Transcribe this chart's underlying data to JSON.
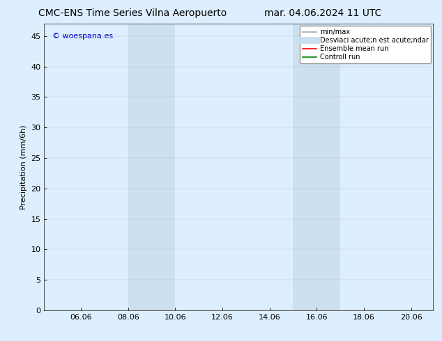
{
  "title_left": "CMC-ENS Time Series Vilna Aeropuerto",
  "title_right": "mar. 04.06.2024 11 UTC",
  "ylabel": "Precipitation (mm/6h)",
  "watermark": "© woespana.es",
  "watermark_color": "#0000cc",
  "background_color": "#ffffff",
  "plot_bg_color": "#ddeeff",
  "x_min": 4.5,
  "x_max": 21.0,
  "y_min": 0,
  "y_max": 47,
  "x_ticks": [
    6.06,
    8.06,
    10.06,
    12.06,
    14.06,
    16.06,
    18.06,
    20.06
  ],
  "x_tick_labels": [
    "06.06",
    "08.06",
    "10.06",
    "12.06",
    "14.06",
    "16.06",
    "18.06",
    "20.06"
  ],
  "y_ticks": [
    0,
    5,
    10,
    15,
    20,
    25,
    30,
    35,
    40,
    45
  ],
  "shaded_regions": [
    {
      "x_start": 8.06,
      "x_end": 10.06,
      "color": "#cce0f0",
      "alpha": 1.0
    },
    {
      "x_start": 15.06,
      "x_end": 17.06,
      "color": "#cce0f0",
      "alpha": 1.0
    }
  ],
  "legend_entries": [
    {
      "label": "min/max",
      "color": "#aaaaaa",
      "lw": 1.2,
      "style": "solid"
    },
    {
      "label": "Desviaci acute;n est acute;ndar",
      "color": "#c8dff0",
      "lw": 7,
      "style": "solid"
    },
    {
      "label": "Ensemble mean run",
      "color": "#ff0000",
      "lw": 1.2,
      "style": "solid"
    },
    {
      "label": "Controll run",
      "color": "#008000",
      "lw": 1.2,
      "style": "solid"
    }
  ],
  "font_size_title": 10,
  "font_size_axis": 8,
  "font_size_tick": 8,
  "font_size_legend": 7,
  "font_size_watermark": 8
}
